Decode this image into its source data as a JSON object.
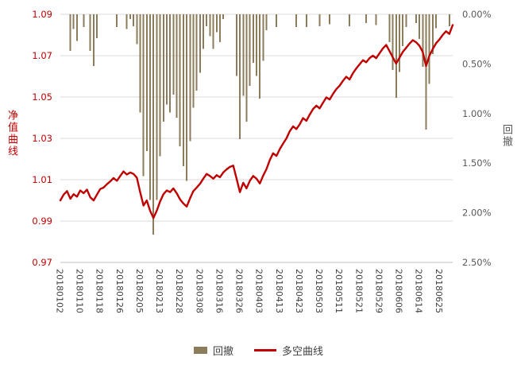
{
  "chart_data": {
    "type": "combo",
    "title": "",
    "legend_position": "bottom",
    "background": "#FFFFFF",
    "grid_color": "#D9D9D9",
    "axis_line_color": "#BFBFBF",
    "x_label_color": "#3F3F3F",
    "left_axis": {
      "title": "净值曲线",
      "min": 0.97,
      "max": 1.09,
      "color": "#C00000",
      "ticks": [
        "1.09",
        "1.07",
        "1.05",
        "1.03",
        "1.01",
        "0.99",
        "0.97"
      ]
    },
    "right_axis": {
      "title": "回撤",
      "min": 0.0,
      "max": 2.5,
      "inverted": true,
      "color": "#595959",
      "ticks": [
        "0.00%",
        "0.50%",
        "1.00%",
        "1.50%",
        "2.00%",
        "2.50%"
      ]
    },
    "x_tick_labels": [
      "20180102",
      "20180110",
      "20180118",
      "20180126",
      "20180205",
      "20180213",
      "20180228",
      "20180308",
      "20180316",
      "20180326",
      "20180403",
      "20180413",
      "20180423",
      "20180503",
      "20180511",
      "20180521",
      "20180529",
      "20180606",
      "20180614",
      "20180625"
    ],
    "x_tick_indices": [
      0,
      6,
      12,
      18,
      24,
      30,
      36,
      42,
      48,
      54,
      60,
      66,
      72,
      78,
      84,
      90,
      96,
      102,
      108,
      114
    ],
    "dates": [
      "20180102",
      "20180103",
      "20180104",
      "20180105",
      "20180108",
      "20180109",
      "20180110",
      "20180111",
      "20180112",
      "20180115",
      "20180116",
      "20180117",
      "20180118",
      "20180119",
      "20180122",
      "20180123",
      "20180124",
      "20180125",
      "20180126",
      "20180129",
      "20180130",
      "20180131",
      "20180201",
      "20180202",
      "20180205",
      "20180206",
      "20180207",
      "20180208",
      "20180209",
      "20180212",
      "20180213",
      "20180214",
      "20180222",
      "20180223",
      "20180226",
      "20180227",
      "20180228",
      "20180301",
      "20180302",
      "20180305",
      "20180306",
      "20180307",
      "20180308",
      "20180309",
      "20180312",
      "20180313",
      "20180314",
      "20180315",
      "20180316",
      "20180319",
      "20180320",
      "20180321",
      "20180322",
      "20180323",
      "20180326",
      "20180327",
      "20180328",
      "20180329",
      "20180330",
      "20180402",
      "20180403",
      "20180404",
      "20180409",
      "20180410",
      "20180411",
      "20180412",
      "20180413",
      "20180416",
      "20180417",
      "20180418",
      "20180419",
      "20180420",
      "20180423",
      "20180424",
      "20180425",
      "20180426",
      "20180427",
      "20180502",
      "20180503",
      "20180504",
      "20180507",
      "20180508",
      "20180509",
      "20180510",
      "20180511",
      "20180514",
      "20180515",
      "20180516",
      "20180517",
      "20180518",
      "20180521",
      "20180522",
      "20180523",
      "20180524",
      "20180525",
      "20180528",
      "20180529",
      "20180530",
      "20180531",
      "20180601",
      "20180604",
      "20180605",
      "20180606",
      "20180607",
      "20180608",
      "20180611",
      "20180612",
      "20180613",
      "20180614",
      "20180615",
      "20180619",
      "20180620",
      "20180621",
      "20180622",
      "20180625",
      "20180626",
      "20180627",
      "20180628",
      "20180629"
    ],
    "series": [
      {
        "name": "多空曲线",
        "type": "line",
        "axis": "left",
        "color": "#C00000",
        "values": [
          1.0,
          1.0028,
          1.0045,
          1.0008,
          1.003,
          1.0018,
          1.0048,
          1.0035,
          1.0052,
          1.0015,
          1.0,
          1.0028,
          1.0055,
          1.0062,
          1.0078,
          1.0092,
          1.0108,
          1.0095,
          1.0118,
          1.014,
          1.0125,
          1.0135,
          1.0128,
          1.011,
          1.004,
          0.9975,
          1.0,
          0.995,
          0.9915,
          0.995,
          0.9995,
          1.003,
          1.0048,
          1.004,
          1.0058,
          1.0035,
          1.0005,
          0.9985,
          0.997,
          1.001,
          1.0045,
          1.0062,
          1.008,
          1.0105,
          1.0128,
          1.0118,
          1.0105,
          1.0122,
          1.0112,
          1.0135,
          1.015,
          1.0162,
          1.0168,
          1.0105,
          1.004,
          1.0085,
          1.0058,
          1.0095,
          1.0118,
          1.0105,
          1.0082,
          1.012,
          1.0152,
          1.0195,
          1.0228,
          1.0215,
          1.0248,
          1.0275,
          1.03,
          1.0335,
          1.0358,
          1.0345,
          1.0368,
          1.0398,
          1.0385,
          1.0415,
          1.0442,
          1.0458,
          1.0445,
          1.0472,
          1.0498,
          1.0488,
          1.0515,
          1.0538,
          1.0555,
          1.0578,
          1.0598,
          1.0585,
          1.0615,
          1.0638,
          1.0658,
          1.0678,
          1.0668,
          1.0688,
          1.07,
          1.0688,
          1.0712,
          1.0735,
          1.0752,
          1.0722,
          1.0692,
          1.0662,
          1.069,
          1.0718,
          1.0738,
          1.0758,
          1.0775,
          1.0765,
          1.0748,
          1.0718,
          1.065,
          1.07,
          1.0732,
          1.076,
          1.0778,
          1.08,
          1.0818,
          1.0805,
          1.0848
        ]
      },
      {
        "name": "回撤",
        "type": "bar",
        "axis": "right",
        "unit": "percent",
        "color": "#8B7D5B",
        "values": [
          0.0,
          0.0,
          0.0,
          0.37,
          0.15,
          0.27,
          0.0,
          0.13,
          0.0,
          0.37,
          0.52,
          0.24,
          0.0,
          0.0,
          0.0,
          0.0,
          0.0,
          0.13,
          0.0,
          0.0,
          0.15,
          0.05,
          0.12,
          0.3,
          0.99,
          1.63,
          1.38,
          1.87,
          2.22,
          1.87,
          1.43,
          1.08,
          0.91,
          0.99,
          0.81,
          1.04,
          1.33,
          1.53,
          1.68,
          1.28,
          0.94,
          0.77,
          0.59,
          0.35,
          0.12,
          0.22,
          0.35,
          0.18,
          0.28,
          0.05,
          0.0,
          0.0,
          0.0,
          0.62,
          1.26,
          0.82,
          1.08,
          0.72,
          0.49,
          0.62,
          0.85,
          0.47,
          0.16,
          0.0,
          0.0,
          0.13,
          0.0,
          0.0,
          0.0,
          0.0,
          0.0,
          0.13,
          0.0,
          0.0,
          0.13,
          0.0,
          0.0,
          0.0,
          0.12,
          0.0,
          0.0,
          0.1,
          0.0,
          0.0,
          0.0,
          0.0,
          0.0,
          0.12,
          0.0,
          0.0,
          0.0,
          0.0,
          0.09,
          0.0,
          0.0,
          0.11,
          0.0,
          0.0,
          0.0,
          0.28,
          0.56,
          0.84,
          0.58,
          0.32,
          0.13,
          0.0,
          0.0,
          0.09,
          0.25,
          0.53,
          1.16,
          0.7,
          0.4,
          0.14,
          0.0,
          0.0,
          0.0,
          0.12,
          0.0
        ]
      }
    ]
  }
}
